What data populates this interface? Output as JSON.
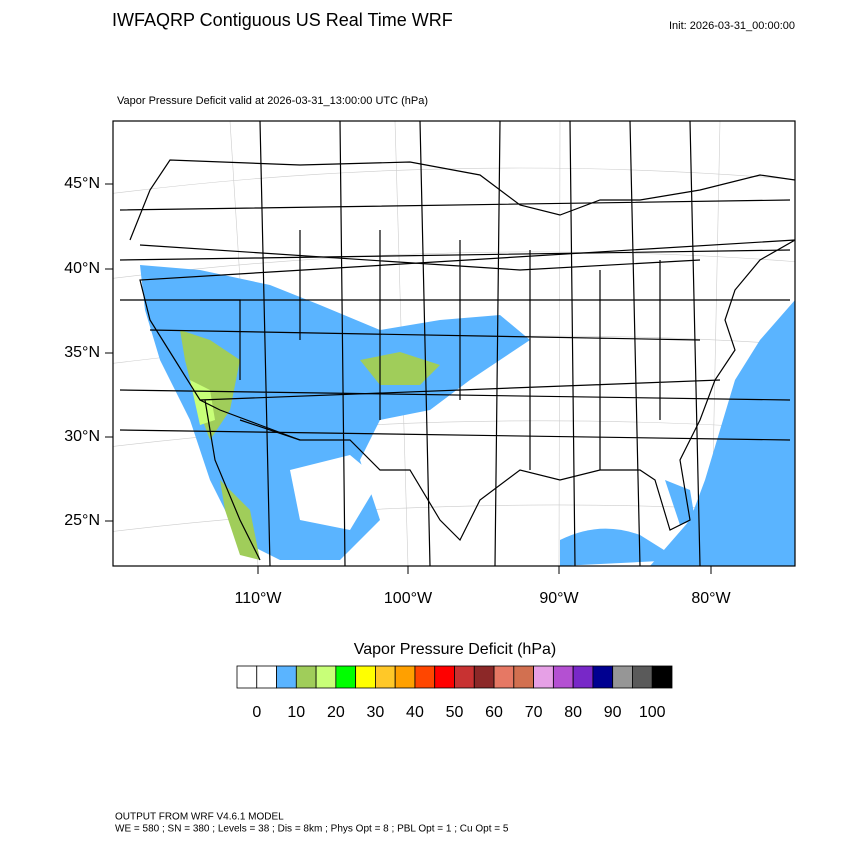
{
  "header": {
    "title": "IWFAQRP Contiguous US Real Time WRF",
    "init": "Init: 2026-03-31_00:00:00"
  },
  "map": {
    "subtitle": "Vapor Pressure Deficit valid at 2026-03-31_13:00:00 UTC   (hPa)",
    "lat_labels": [
      "45°N",
      "40°N",
      "35°N",
      "30°N",
      "25°N"
    ],
    "lon_labels": [
      "110°W",
      "100°W",
      "90°W",
      "80°W"
    ]
  },
  "colorbar": {
    "title": "Vapor Pressure Deficit  (hPa)",
    "colors": [
      "#ffffff",
      "#ffffff",
      "#5ab4ff",
      "#a0cd5a",
      "#c8ff78",
      "#00ff00",
      "#ffff00",
      "#ffc828",
      "#ffa000",
      "#ff4600",
      "#ff0000",
      "#c83232",
      "#8c2828",
      "#e67864",
      "#d27050",
      "#e6a0e6",
      "#b450d2",
      "#7828c8",
      "#000090",
      "#969696",
      "#5a5a5a",
      "#000000"
    ],
    "labels": [
      0,
      10,
      20,
      30,
      40,
      50,
      60,
      70,
      80,
      90,
      100
    ]
  },
  "footer": {
    "line1": "OUTPUT FROM WRF V4.6.1 MODEL",
    "line2": "WE = 580 ; SN = 380 ; Levels = 38 ; Dis = 8km ; Phys Opt = 8 ; PBL Opt = 1 ; Cu Opt = 5"
  }
}
